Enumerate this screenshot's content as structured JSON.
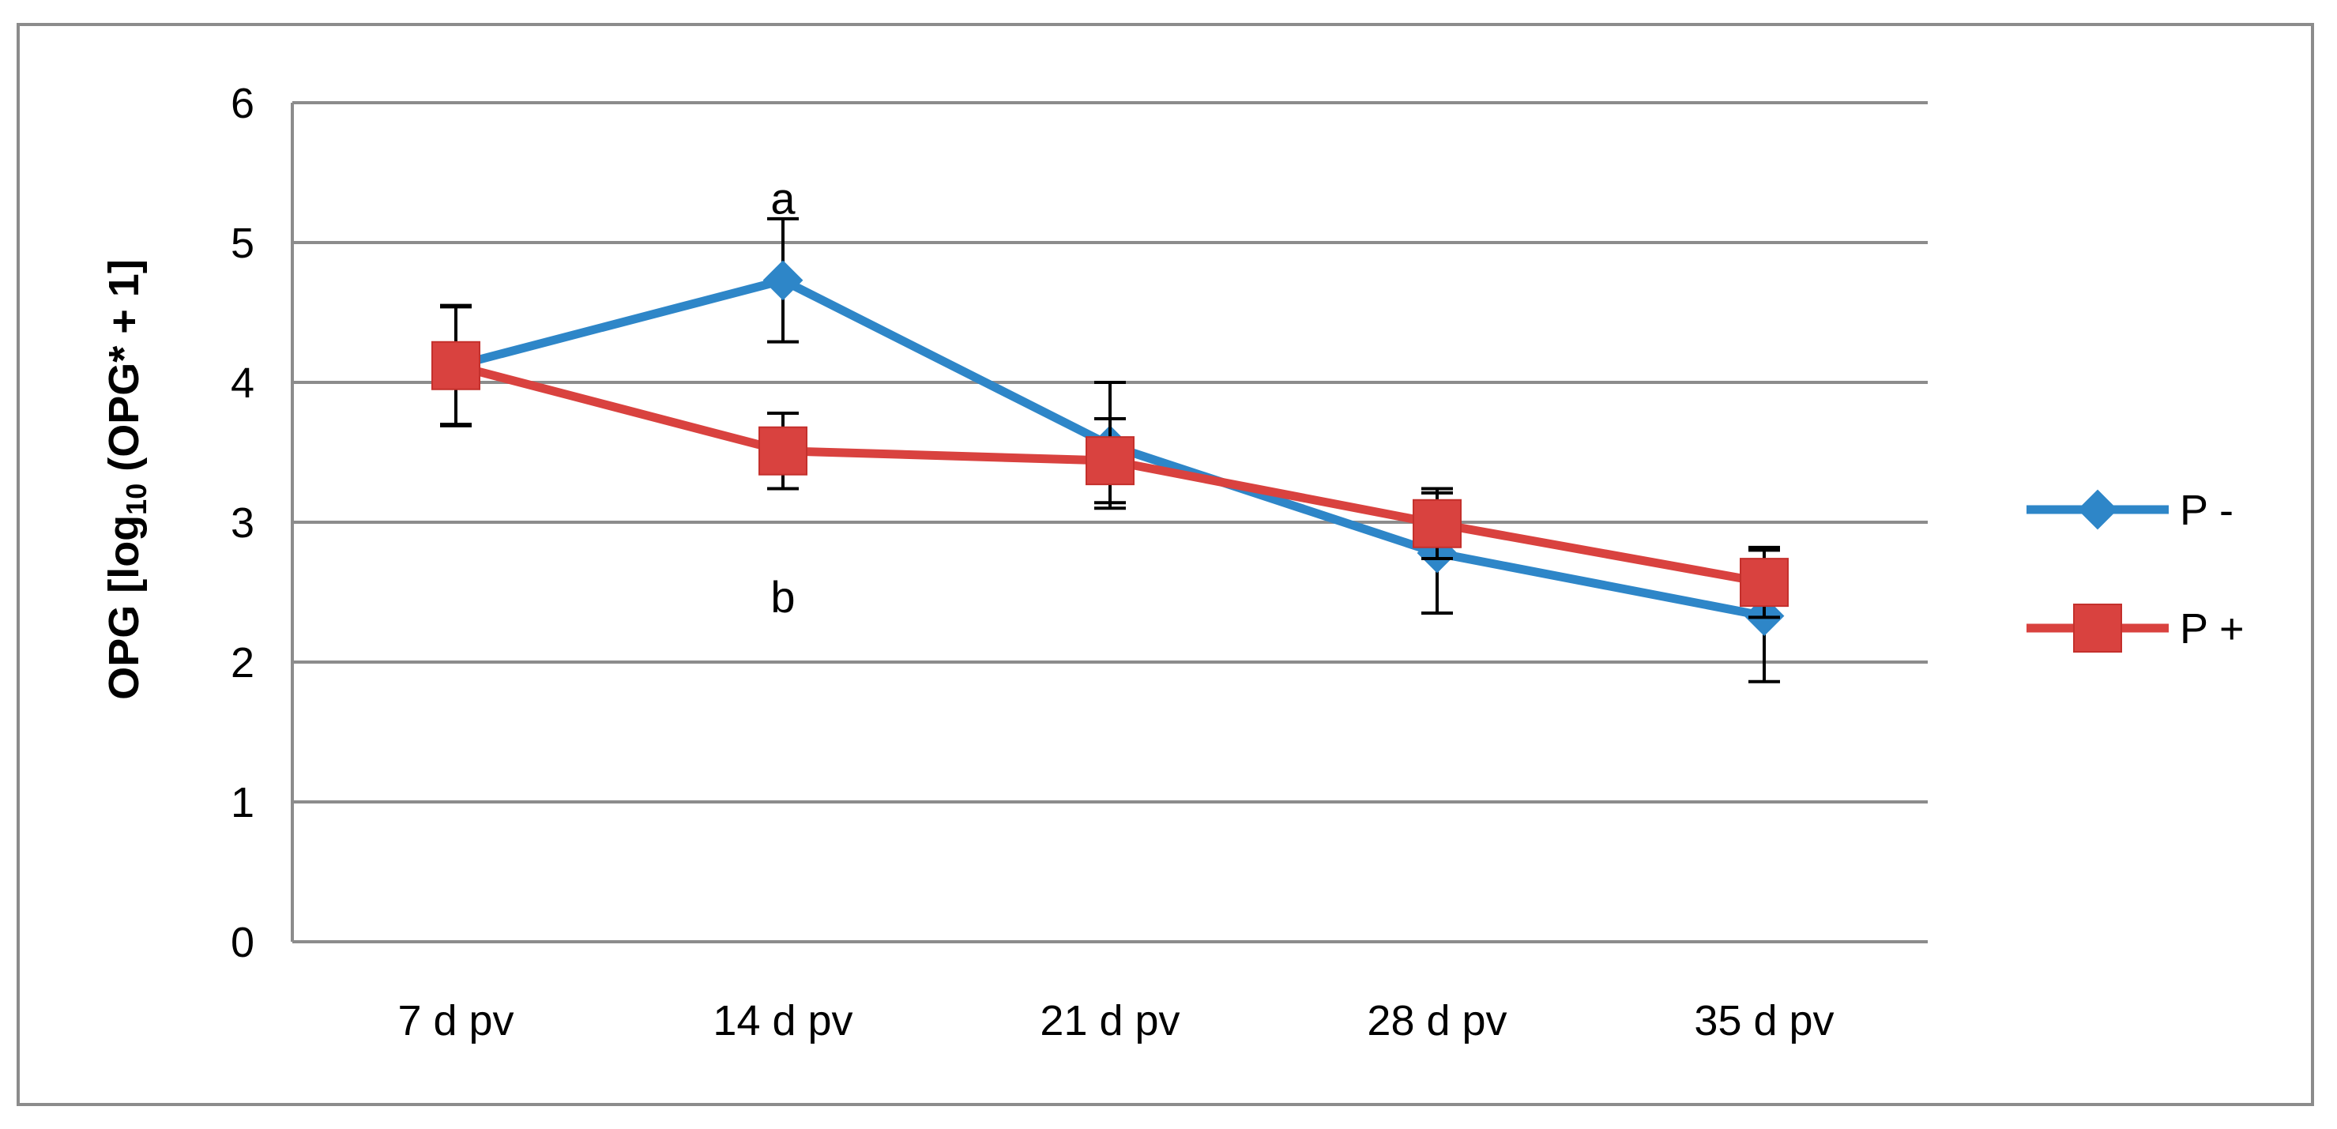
{
  "chart_data": {
    "type": "line",
    "title": "",
    "xlabel": "",
    "ylabel": {
      "prefix": "OPG [log",
      "subscript": "10",
      "suffix": " (OPG* + 1]"
    },
    "categories": [
      "7 d pv",
      "14 d pv",
      "21 d pv",
      "28 d pv",
      "35 d pv"
    ],
    "ylim": [
      0,
      6
    ],
    "yticks": [
      "0",
      "1",
      "2",
      "3",
      "4",
      "5",
      "6"
    ],
    "grid": true,
    "legend_position": "right",
    "series": [
      {
        "name": "P -",
        "marker": "diamond",
        "color": "#2e86c8",
        "values": [
          4.12,
          4.73,
          3.55,
          2.78,
          2.33
        ],
        "error": [
          0.42,
          0.44,
          0.45,
          0.43,
          0.47
        ]
      },
      {
        "name": "P +",
        "marker": "square",
        "color": "#d9423f",
        "values": [
          4.12,
          3.51,
          3.44,
          2.99,
          2.57
        ],
        "error": [
          0.43,
          0.27,
          0.3,
          0.25,
          0.25
        ]
      }
    ],
    "annotations": [
      {
        "text": "a",
        "category": "14 d pv",
        "y": 5.32
      },
      {
        "text": "b",
        "category": "14 d pv",
        "y": 2.47
      }
    ]
  }
}
